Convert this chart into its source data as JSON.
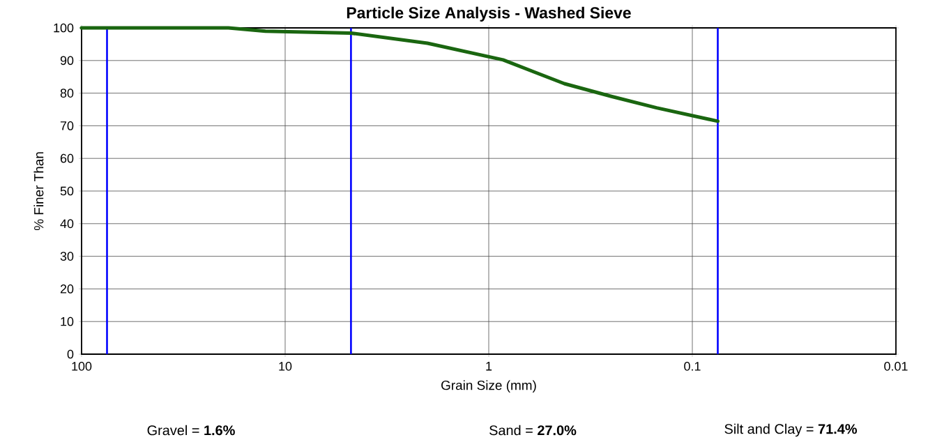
{
  "chart_data": {
    "type": "line",
    "title": "Particle Size Analysis - Washed Sieve",
    "xlabel": "Grain Size (mm)",
    "ylabel": "% Finer Than",
    "x": [
      100,
      19,
      12.5,
      4.75,
      2.0,
      0.85,
      0.425,
      0.25,
      0.15,
      0.075
    ],
    "series": [
      {
        "color": "#1a6610",
        "values": [
          100,
          100,
          99,
          98.4,
          95.3,
          90.2,
          82.9,
          79,
          75.5,
          71.4
        ]
      }
    ],
    "log": "x",
    "xlim": [
      100,
      0.01
    ],
    "xticks": [
      100,
      10,
      1,
      0.1,
      0.01
    ],
    "ylim": [
      0,
      100
    ],
    "yticks": [
      0,
      10,
      20,
      30,
      40,
      50,
      60,
      70,
      80,
      90,
      100
    ],
    "grid": true,
    "marker": "none",
    "line_style": "solid",
    "ref_lines": [
      {
        "axis": "x",
        "value": 75,
        "color": "#0000ff"
      },
      {
        "axis": "x",
        "value": 4.75,
        "color": "#0000ff"
      },
      {
        "axis": "x",
        "value": 0.075,
        "color": "#0000ff"
      }
    ],
    "annotations": [
      "Gravel = **1.6%**",
      "Sand = **27.0%**",
      "Silt and Clay = **71.4%**"
    ]
  }
}
